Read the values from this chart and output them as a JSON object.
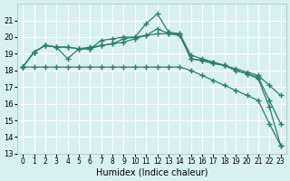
{
  "xlabel": "Humidex (Indice chaleur)",
  "ylabel": "",
  "bg_color": "#d8f0f0",
  "grid_color": "#ffffff",
  "line_color": "#2e7d6e",
  "x_values": [
    0,
    1,
    2,
    3,
    4,
    5,
    6,
    7,
    8,
    9,
    10,
    11,
    12,
    13,
    14,
    15,
    16,
    17,
    18,
    19,
    20,
    21,
    22,
    23
  ],
  "series": [
    [
      18.2,
      19.1,
      19.5,
      19.4,
      19.4,
      19.3,
      19.3,
      19.8,
      19.9,
      20.0,
      20.0,
      20.1,
      20.5,
      20.2,
      20.1,
      18.7,
      18.6,
      18.5,
      18.3,
      18.0,
      17.8,
      17.6,
      16.2,
      14.8
    ],
    [
      18.2,
      19.1,
      19.5,
      19.4,
      18.7,
      19.3,
      19.3,
      19.5,
      19.6,
      19.9,
      20.0,
      20.8,
      21.4,
      20.3,
      20.2,
      18.7,
      18.6,
      18.4,
      18.3,
      18.0,
      17.8,
      17.5,
      15.8,
      13.5
    ],
    [
      18.2,
      19.1,
      19.5,
      19.4,
      19.4,
      19.3,
      19.4,
      19.5,
      19.6,
      19.7,
      19.9,
      20.1,
      20.2,
      20.2,
      20.2,
      18.9,
      18.7,
      18.5,
      18.3,
      18.1,
      17.9,
      17.7,
      17.1,
      16.5
    ],
    [
      18.2,
      18.2,
      18.2,
      18.2,
      18.2,
      18.2,
      18.2,
      18.2,
      18.2,
      18.2,
      18.2,
      18.2,
      18.2,
      18.2,
      18.2,
      18.0,
      17.7,
      17.4,
      17.1,
      16.8,
      16.5,
      16.2,
      14.8,
      13.5
    ]
  ],
  "ylim": [
    13,
    22
  ],
  "yticks": [
    13,
    14,
    15,
    16,
    17,
    18,
    19,
    20,
    21
  ],
  "xtick_labels": [
    "0",
    "1",
    "2",
    "3",
    "4",
    "5",
    "6",
    "7",
    "8",
    "9",
    "10",
    "11",
    "12",
    "13",
    "14",
    "15",
    "16",
    "17",
    "18",
    "19",
    "20",
    "21",
    "22",
    "23"
  ]
}
